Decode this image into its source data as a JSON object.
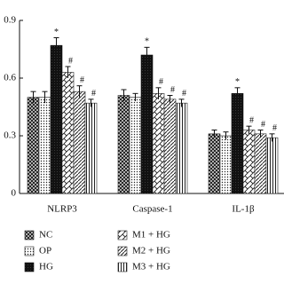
{
  "chart_data": {
    "type": "bar",
    "categories": [
      "NLRP3",
      "Caspase-1",
      "IL-1β"
    ],
    "ylim": [
      0,
      0.9
    ],
    "yticks": [
      0,
      0.3,
      0.6,
      0.9
    ],
    "series": [
      {
        "name": "NC",
        "color": "#222222",
        "pattern": "crosshatch",
        "values": [
          0.5,
          0.51,
          0.31
        ],
        "errors": [
          0.03,
          0.03,
          0.02
        ]
      },
      {
        "name": "OP",
        "color": "#222222",
        "pattern": "dots",
        "values": [
          0.5,
          0.5,
          0.3
        ],
        "errors": [
          0.03,
          0.02,
          0.02
        ]
      },
      {
        "name": "HG",
        "color": "#111111",
        "pattern": "solid",
        "values": [
          0.77,
          0.72,
          0.52
        ],
        "errors": [
          0.04,
          0.04,
          0.03
        ],
        "marker": "*"
      },
      {
        "name": "M1 + HG",
        "color": "#222222",
        "pattern": "chevron",
        "values": [
          0.63,
          0.52,
          0.33
        ],
        "errors": [
          0.03,
          0.03,
          0.02
        ],
        "marker": "#"
      },
      {
        "name": "M2 + HG",
        "color": "#222222",
        "pattern": "diagonal",
        "values": [
          0.53,
          0.49,
          0.31
        ],
        "errors": [
          0.03,
          0.02,
          0.02
        ],
        "marker": "#"
      },
      {
        "name": "M3 + HG",
        "color": "#222222",
        "pattern": "vertical",
        "values": [
          0.47,
          0.47,
          0.29
        ],
        "errors": [
          0.02,
          0.02,
          0.02
        ],
        "marker": "#"
      }
    ]
  }
}
